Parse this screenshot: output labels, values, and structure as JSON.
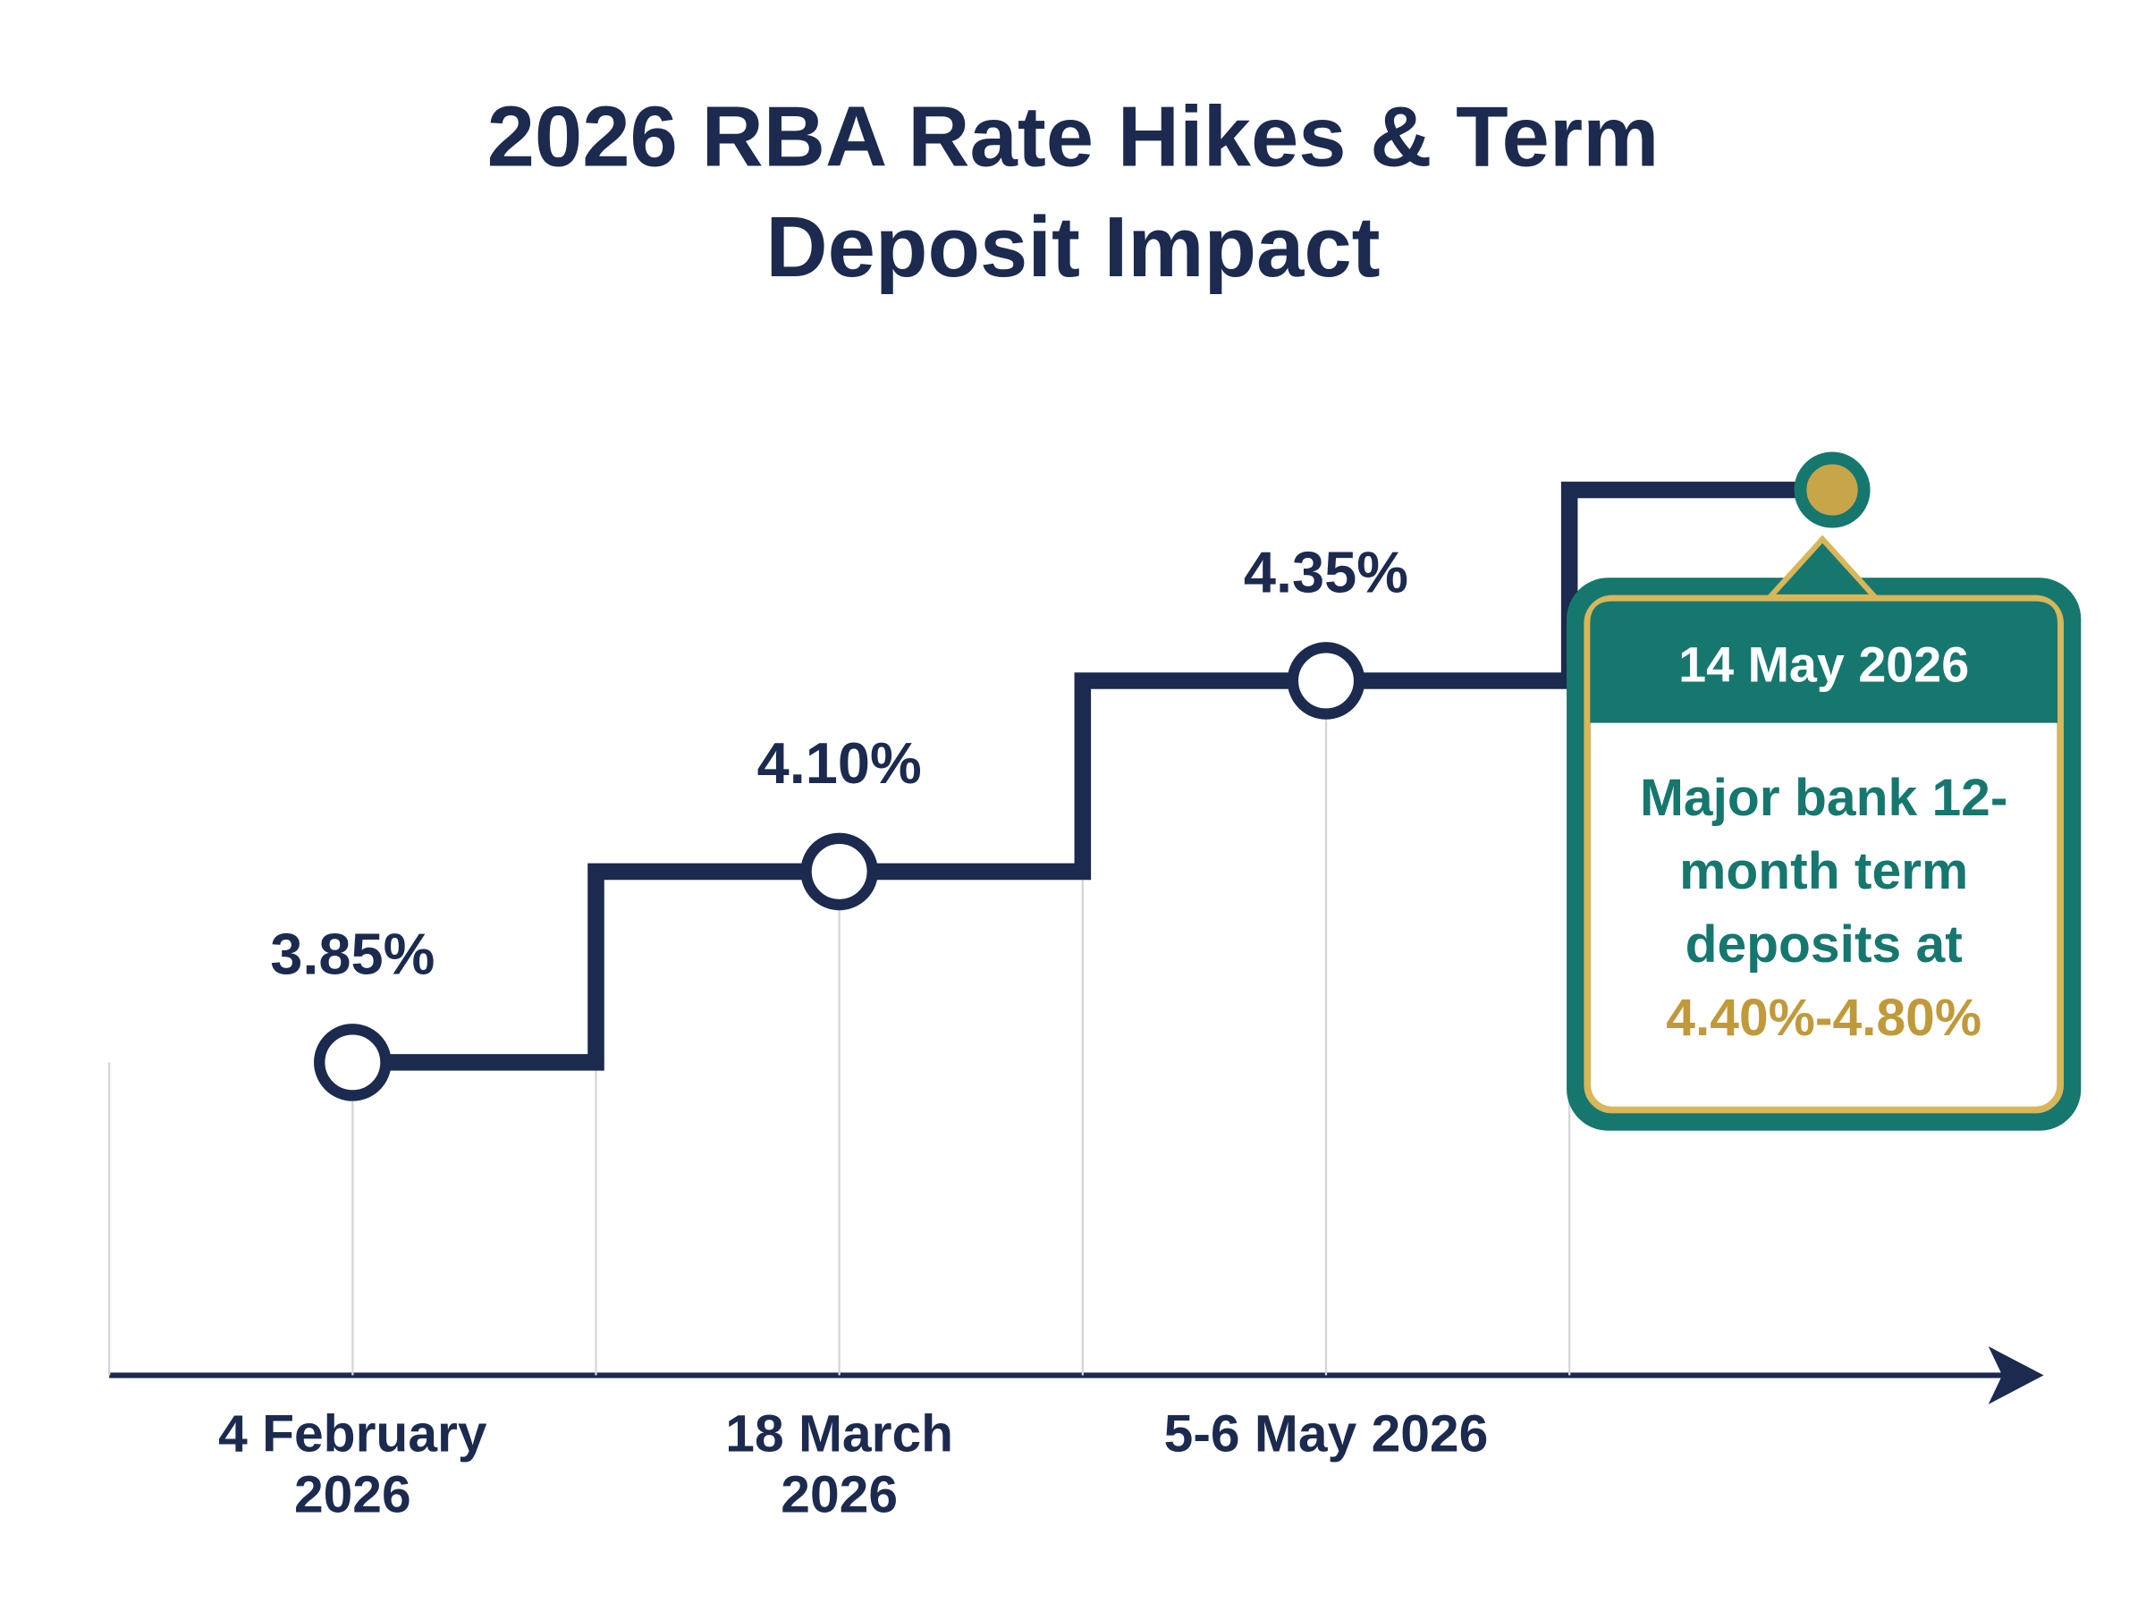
{
  "chart_data": {
    "type": "step",
    "title": "2026 RBA Rate Hikes & Term Deposit Impact",
    "categories": [
      "4 February 2026",
      "18 March 2026",
      "5-6 May 2026"
    ],
    "values": [
      3.85,
      4.1,
      4.35
    ],
    "value_labels": [
      "3.85%",
      "4.10%",
      "4.35%"
    ],
    "color": "#1b2a4e",
    "ylim": [
      3.44,
      4.8
    ],
    "annotation": {
      "title": "14 May 2026",
      "text": "Major bank 12-month term deposits at",
      "highlight": "4.40%-4.80%",
      "value": 4.6,
      "color": "#c9a54a"
    }
  }
}
